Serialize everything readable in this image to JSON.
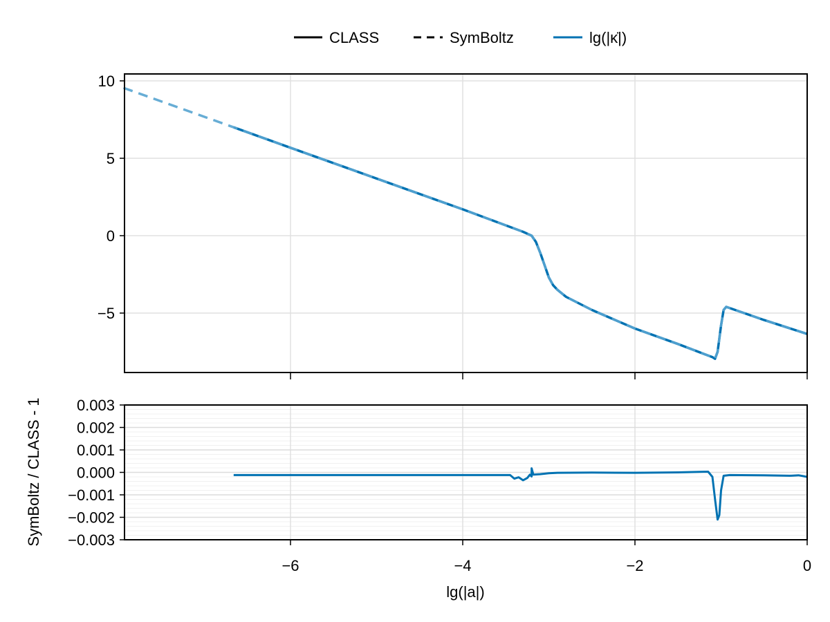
{
  "legend": {
    "items": [
      {
        "label": "CLASS",
        "style": "solid",
        "color": "#000000"
      },
      {
        "label": "SymBoltz",
        "style": "dashed",
        "color": "#000000"
      },
      {
        "label": "lg(|κ̇|)",
        "style": "solid",
        "color": "#0072b2"
      }
    ]
  },
  "chart_data": [
    {
      "type": "line",
      "title": "",
      "xlabel": "",
      "ylabel": "",
      "xlim": [
        -7.94,
        0
      ],
      "ylim": [
        -8.9,
        10.5
      ],
      "grid": true,
      "legend_position": "top",
      "x_ticks": [
        "-6",
        "-4",
        "-2",
        "0"
      ],
      "y_ticks": [
        "10",
        "5",
        "0",
        "-5"
      ],
      "x_tick_values": [
        -6,
        -4,
        -2,
        0
      ],
      "y_tick_values": [
        10,
        5,
        0,
        -5
      ],
      "series": [
        {
          "name": "lg(|κ̇|) CLASS",
          "style": "solid",
          "color": "#0072b2",
          "x": [
            -6.66,
            -6,
            -4,
            -3.3,
            -3.2,
            -3.15,
            -3.1,
            -3.05,
            -3.0,
            -2.95,
            -2.9,
            -2.8,
            -2.5,
            -2,
            -1.5,
            -1.1,
            -1.07,
            -1.04,
            -1.0,
            -0.97,
            -0.94,
            -0.5,
            0
          ],
          "y": [
            7.0,
            5.68,
            1.7,
            0.25,
            0.0,
            -0.4,
            -1.1,
            -1.9,
            -2.7,
            -3.2,
            -3.5,
            -3.95,
            -4.8,
            -6.0,
            -7.0,
            -7.85,
            -7.95,
            -7.5,
            -5.8,
            -4.8,
            -4.6,
            -5.45,
            -6.35
          ]
        },
        {
          "name": "lg(|κ̇|) SymBoltz",
          "style": "dashed",
          "color": "#56a4d0",
          "x": [
            -7.94,
            -6.66,
            -6,
            -4,
            -3.3,
            -3.2,
            -3.15,
            -3.1,
            -3.05,
            -3.0,
            -2.95,
            -2.9,
            -2.8,
            -2.5,
            -2,
            -1.5,
            -1.1,
            -1.07,
            -1.04,
            -1.0,
            -0.97,
            -0.94,
            -0.5,
            0
          ],
          "y": [
            9.55,
            7.0,
            5.68,
            1.7,
            0.25,
            0.0,
            -0.4,
            -1.1,
            -1.9,
            -2.7,
            -3.2,
            -3.5,
            -3.95,
            -4.8,
            -6.0,
            -7.0,
            -7.85,
            -7.95,
            -7.5,
            -5.8,
            -4.8,
            -4.6,
            -5.45,
            -6.35
          ]
        }
      ]
    },
    {
      "type": "line",
      "title": "",
      "xlabel": "lg(|a|)",
      "ylabel": "SymBoltz / CLASS - 1",
      "xlim": [
        -7.94,
        0
      ],
      "ylim": [
        -0.003,
        0.003
      ],
      "grid": true,
      "x_ticks": [
        "-6",
        "-4",
        "-2",
        "0"
      ],
      "y_ticks": [
        "0.003",
        "0.002",
        "0.001",
        "0.000",
        "-0.001",
        "-0.002",
        "-0.003"
      ],
      "x_tick_values": [
        -6,
        -4,
        -2,
        0
      ],
      "y_tick_values": [
        0.003,
        0.002,
        0.001,
        0.0,
        -0.001,
        -0.002,
        -0.003
      ],
      "series": [
        {
          "name": "SymBoltz / CLASS - 1",
          "style": "solid",
          "color": "#0072b2",
          "x": [
            -6.66,
            -5,
            -3.6,
            -3.45,
            -3.4,
            -3.35,
            -3.3,
            -3.25,
            -3.22,
            -3.2,
            -3.2,
            -3.18,
            -3.1,
            -3.0,
            -2.9,
            -2.5,
            -2,
            -1.5,
            -1.15,
            -1.1,
            -1.07,
            -1.04,
            -1.02,
            -1.0,
            -0.97,
            -0.9,
            -0.5,
            -0.2,
            -0.1,
            0
          ],
          "y": [
            -0.00012,
            -0.00012,
            -0.00012,
            -0.00012,
            -0.00028,
            -0.00022,
            -0.00035,
            -0.00025,
            -0.0001,
            -0.00018,
            0.00018,
            -0.0001,
            -8e-05,
            -4e-05,
            -2e-05,
            -1e-05,
            -2e-05,
            0.0,
            3e-05,
            -0.0002,
            -0.0012,
            -0.0021,
            -0.0019,
            -0.0008,
            -0.00015,
            -0.00012,
            -0.00013,
            -0.00015,
            -0.00013,
            -0.0002
          ]
        }
      ]
    }
  ]
}
